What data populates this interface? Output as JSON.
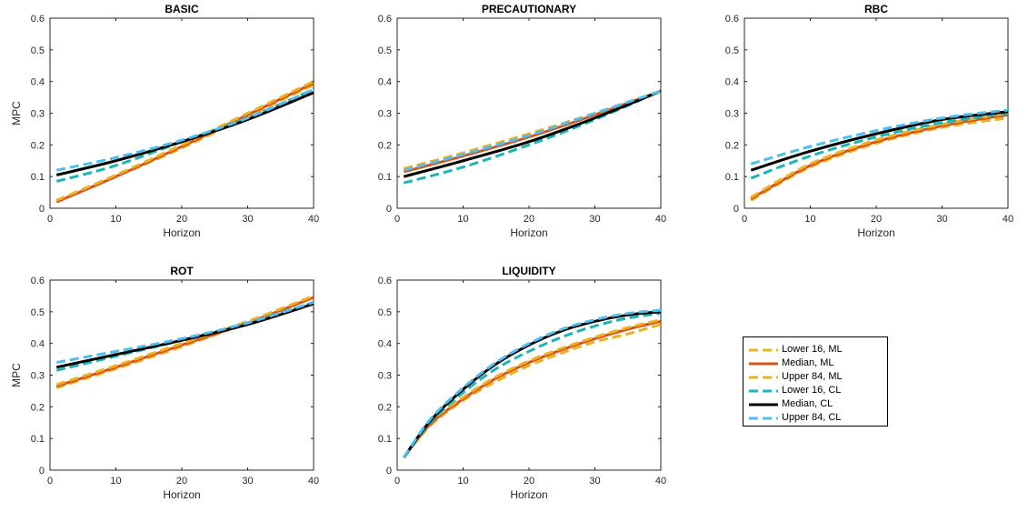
{
  "colors": {
    "lower16_ml": "#EDB120",
    "median_ml": "#D95319",
    "upper84_ml": "#EDB120",
    "lower16_cl": "#1BB5B5",
    "median_cl": "#000000",
    "upper84_cl": "#4DBEEE"
  },
  "legend": {
    "placement": "right of LIQUIDITY panel",
    "entries": [
      {
        "key": "lower16_ml",
        "label": "Lower 16, ML",
        "style": "dashed"
      },
      {
        "key": "median_ml",
        "label": "Median, ML",
        "style": "solid"
      },
      {
        "key": "upper84_ml",
        "label": "Upper 84, ML",
        "style": "dashed"
      },
      {
        "key": "lower16_cl",
        "label": "Lower 16, CL",
        "style": "dashed"
      },
      {
        "key": "median_cl",
        "label": "Median, CL",
        "style": "solid"
      },
      {
        "key": "upper84_cl",
        "label": "Upper 84, CL",
        "style": "dashed"
      }
    ]
  },
  "chart_data": [
    {
      "type": "line",
      "title": "BASIC",
      "xlabel": "Horizon",
      "ylabel": "MPC",
      "xlim": [
        0,
        40
      ],
      "ylim": [
        0,
        0.6
      ],
      "xticks": [
        0,
        10,
        20,
        30,
        40
      ],
      "yticks": [
        0,
        0.1,
        0.2,
        0.3,
        0.4,
        0.5,
        0.6
      ],
      "x": [
        1,
        10,
        20,
        30,
        40
      ],
      "series": [
        {
          "key": "lower16_ml",
          "values": [
            0.02,
            0.1,
            0.19,
            0.29,
            0.39
          ]
        },
        {
          "key": "median_ml",
          "values": [
            0.02,
            0.1,
            0.195,
            0.295,
            0.395
          ]
        },
        {
          "key": "upper84_ml",
          "values": [
            0.025,
            0.105,
            0.2,
            0.3,
            0.4
          ]
        },
        {
          "key": "lower16_cl",
          "values": [
            0.085,
            0.135,
            0.21,
            0.285,
            0.375
          ]
        },
        {
          "key": "median_cl",
          "values": [
            0.105,
            0.15,
            0.21,
            0.28,
            0.365
          ]
        },
        {
          "key": "upper84_cl",
          "values": [
            0.12,
            0.16,
            0.215,
            0.285,
            0.375
          ]
        }
      ]
    },
    {
      "type": "line",
      "title": "PRECAUTIONARY",
      "xlabel": "Horizon",
      "ylabel": "",
      "xlim": [
        0,
        40
      ],
      "ylim": [
        0,
        0.6
      ],
      "xticks": [
        0,
        10,
        20,
        30,
        40
      ],
      "yticks": [
        0,
        0.1,
        0.2,
        0.3,
        0.4,
        0.5,
        0.6
      ],
      "x": [
        1,
        10,
        20,
        30,
        40
      ],
      "series": [
        {
          "key": "lower16_ml",
          "values": [
            0.1,
            0.15,
            0.21,
            0.285,
            0.37
          ]
        },
        {
          "key": "median_ml",
          "values": [
            0.115,
            0.165,
            0.225,
            0.295,
            0.37
          ]
        },
        {
          "key": "upper84_ml",
          "values": [
            0.125,
            0.175,
            0.235,
            0.3,
            0.37
          ]
        },
        {
          "key": "lower16_cl",
          "values": [
            0.08,
            0.13,
            0.2,
            0.28,
            0.37
          ]
        },
        {
          "key": "median_cl",
          "values": [
            0.1,
            0.15,
            0.21,
            0.285,
            0.37
          ]
        },
        {
          "key": "upper84_cl",
          "values": [
            0.12,
            0.17,
            0.23,
            0.3,
            0.37
          ]
        }
      ]
    },
    {
      "type": "line",
      "title": "RBC",
      "xlabel": "Horizon",
      "ylabel": "",
      "xlim": [
        0,
        40
      ],
      "ylim": [
        0,
        0.6
      ],
      "xticks": [
        0,
        10,
        20,
        30,
        40
      ],
      "yticks": [
        0,
        0.1,
        0.2,
        0.3,
        0.4,
        0.5,
        0.6
      ],
      "x": [
        1,
        10,
        20,
        30,
        40
      ],
      "series": [
        {
          "key": "lower16_ml",
          "values": [
            0.025,
            0.13,
            0.205,
            0.255,
            0.285
          ]
        },
        {
          "key": "median_ml",
          "values": [
            0.03,
            0.135,
            0.21,
            0.26,
            0.295
          ]
        },
        {
          "key": "upper84_ml",
          "values": [
            0.035,
            0.14,
            0.215,
            0.265,
            0.3
          ]
        },
        {
          "key": "lower16_cl",
          "values": [
            0.095,
            0.165,
            0.225,
            0.27,
            0.3
          ]
        },
        {
          "key": "median_cl",
          "values": [
            0.12,
            0.18,
            0.235,
            0.28,
            0.305
          ]
        },
        {
          "key": "upper84_cl",
          "values": [
            0.14,
            0.195,
            0.245,
            0.285,
            0.31
          ]
        }
      ]
    },
    {
      "type": "line",
      "title": "ROT",
      "xlabel": "Horizon",
      "ylabel": "MPC",
      "xlim": [
        0,
        40
      ],
      "ylim": [
        0,
        0.6
      ],
      "xticks": [
        0,
        10,
        20,
        30,
        40
      ],
      "yticks": [
        0,
        0.1,
        0.2,
        0.3,
        0.4,
        0.5,
        0.6
      ],
      "x": [
        1,
        10,
        20,
        30,
        40
      ],
      "series": [
        {
          "key": "lower16_ml",
          "values": [
            0.26,
            0.32,
            0.39,
            0.465,
            0.545
          ]
        },
        {
          "key": "median_ml",
          "values": [
            0.265,
            0.325,
            0.395,
            0.465,
            0.545
          ]
        },
        {
          "key": "upper84_ml",
          "values": [
            0.27,
            0.33,
            0.4,
            0.47,
            0.55
          ]
        },
        {
          "key": "lower16_cl",
          "values": [
            0.315,
            0.36,
            0.41,
            0.465,
            0.53
          ]
        },
        {
          "key": "median_cl",
          "values": [
            0.325,
            0.365,
            0.41,
            0.46,
            0.525
          ]
        },
        {
          "key": "upper84_cl",
          "values": [
            0.34,
            0.375,
            0.415,
            0.465,
            0.53
          ]
        }
      ]
    },
    {
      "type": "line",
      "title": "LIQUIDITY",
      "xlabel": "Horizon",
      "ylabel": "",
      "xlim": [
        0,
        40
      ],
      "ylim": [
        0,
        0.6
      ],
      "xticks": [
        0,
        10,
        20,
        30,
        40
      ],
      "yticks": [
        0,
        0.1,
        0.2,
        0.3,
        0.4,
        0.5,
        0.6
      ],
      "x": [
        1,
        5,
        10,
        15,
        20,
        25,
        30,
        35,
        40
      ],
      "series": [
        {
          "key": "lower16_ml",
          "values": [
            0.04,
            0.14,
            0.22,
            0.28,
            0.33,
            0.37,
            0.405,
            0.43,
            0.46
          ]
        },
        {
          "key": "median_ml",
          "values": [
            0.04,
            0.145,
            0.225,
            0.29,
            0.34,
            0.38,
            0.415,
            0.445,
            0.47
          ]
        },
        {
          "key": "upper84_ml",
          "values": [
            0.04,
            0.15,
            0.23,
            0.295,
            0.345,
            0.385,
            0.42,
            0.45,
            0.475
          ]
        },
        {
          "key": "lower16_cl",
          "values": [
            0.04,
            0.15,
            0.245,
            0.32,
            0.375,
            0.42,
            0.455,
            0.48,
            0.495
          ]
        },
        {
          "key": "median_cl",
          "values": [
            0.04,
            0.155,
            0.255,
            0.335,
            0.395,
            0.44,
            0.47,
            0.49,
            0.5
          ]
        },
        {
          "key": "upper84_cl",
          "values": [
            0.04,
            0.16,
            0.26,
            0.34,
            0.4,
            0.445,
            0.475,
            0.495,
            0.505
          ]
        }
      ]
    }
  ]
}
